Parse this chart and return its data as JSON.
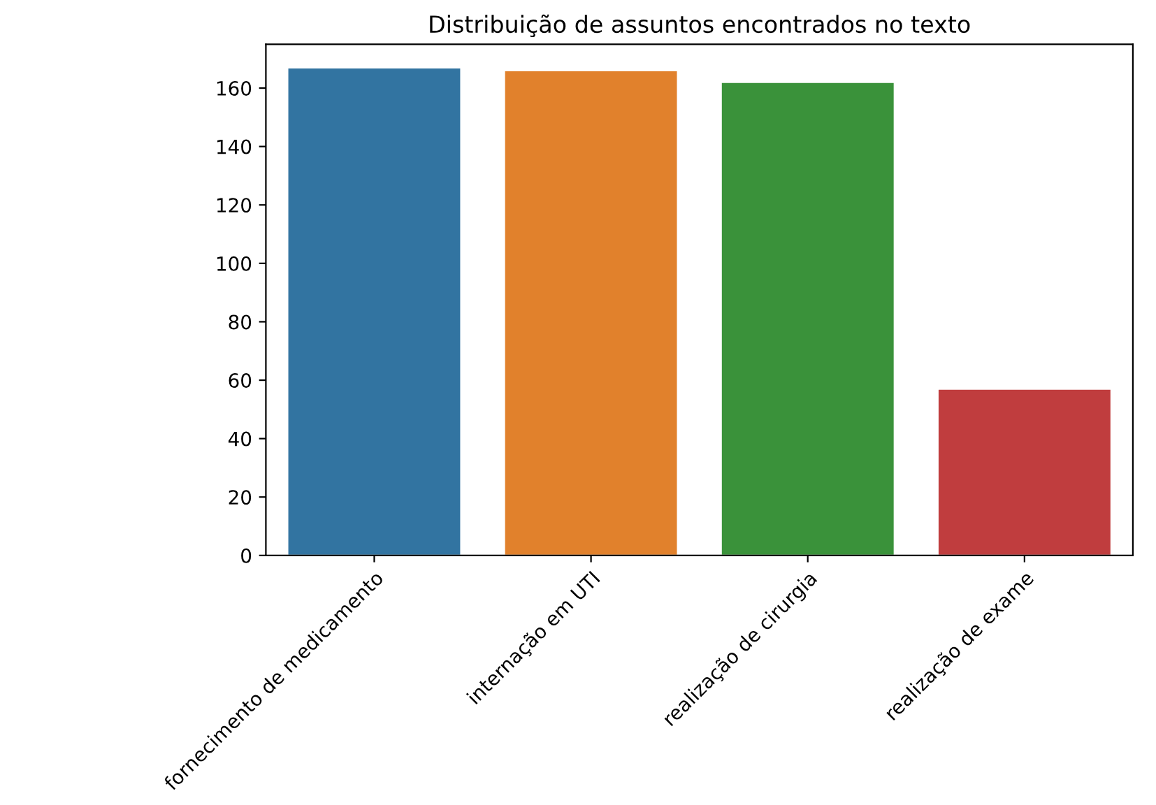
{
  "chart_data": {
    "type": "bar",
    "title": "Distribuição de assuntos encontrados no texto",
    "categories": [
      "fornecimento de medicamento",
      "internação em UTI",
      "realização de cirurgia",
      "realização de exame"
    ],
    "values": [
      167,
      166,
      162,
      57
    ],
    "colors": [
      "#3274a1",
      "#e1812c",
      "#3a923a",
      "#c03d3e"
    ],
    "ylim": [
      0,
      175
    ],
    "yticks": [
      0,
      20,
      40,
      60,
      80,
      100,
      120,
      140,
      160
    ],
    "grid": false
  }
}
